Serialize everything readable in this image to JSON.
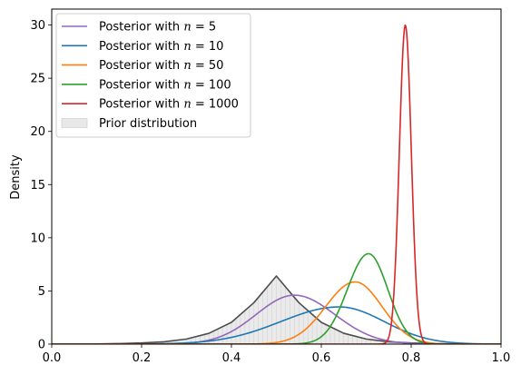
{
  "chart_data": {
    "type": "line",
    "xlabel": "",
    "ylabel": "Density",
    "xlim": [
      0.0,
      1.0
    ],
    "ylim": [
      0,
      31.5
    ],
    "x_ticks": [
      "0.0",
      "0.2",
      "0.4",
      "0.6",
      "0.8",
      "1.0"
    ],
    "y_ticks": [
      "0",
      "5",
      "10",
      "15",
      "20",
      "25",
      "30"
    ],
    "grid": false,
    "legend_position": "top-left",
    "prior": {
      "name": "Prior distribution",
      "mode": 0.5,
      "peak": 6.4,
      "color": "#4d4d4d",
      "fill": "#e8e8e8",
      "x": [
        0.0,
        0.05,
        0.1,
        0.15,
        0.2,
        0.25,
        0.3,
        0.35,
        0.4,
        0.45,
        0.48,
        0.5,
        0.52,
        0.55,
        0.6,
        0.65,
        0.7,
        0.75,
        0.8,
        0.85,
        0.9,
        0.95,
        1.0
      ],
      "y": [
        0.0,
        0.01,
        0.02,
        0.05,
        0.11,
        0.22,
        0.48,
        1.02,
        2.05,
        3.9,
        5.4,
        6.4,
        5.4,
        3.9,
        2.05,
        1.02,
        0.48,
        0.22,
        0.11,
        0.05,
        0.02,
        0.01,
        0.0
      ]
    },
    "series": [
      {
        "name": "Posterior with $n = 5$",
        "label_prefix": "Posterior with ",
        "n_value": "5",
        "color": "#9467bd",
        "mode": 0.54,
        "peak": 4.6,
        "sd_left": 0.085,
        "sd_right": 0.09
      },
      {
        "name": "Posterior with $n = 10$",
        "label_prefix": "Posterior with ",
        "n_value": "10",
        "color": "#1f77b4",
        "mode": 0.64,
        "peak": 3.5,
        "sd_left": 0.13,
        "sd_right": 0.1
      },
      {
        "name": "Posterior with $n = 50$",
        "label_prefix": "Posterior with ",
        "n_value": "50",
        "color": "#ff7f0e",
        "mode": 0.675,
        "peak": 5.85,
        "sd_left": 0.065,
        "sd_right": 0.06
      },
      {
        "name": "Posterior with $n = 100$",
        "label_prefix": "Posterior with ",
        "n_value": "100",
        "color": "#2ca02c",
        "mode": 0.705,
        "peak": 8.5,
        "sd_left": 0.047,
        "sd_right": 0.043
      },
      {
        "name": "Posterior with $n = 1000$",
        "label_prefix": "Posterior with ",
        "n_value": "1000",
        "color": "#d62728",
        "mode": 0.787,
        "peak": 30.0,
        "sd_left": 0.0133,
        "sd_right": 0.0133
      }
    ]
  }
}
